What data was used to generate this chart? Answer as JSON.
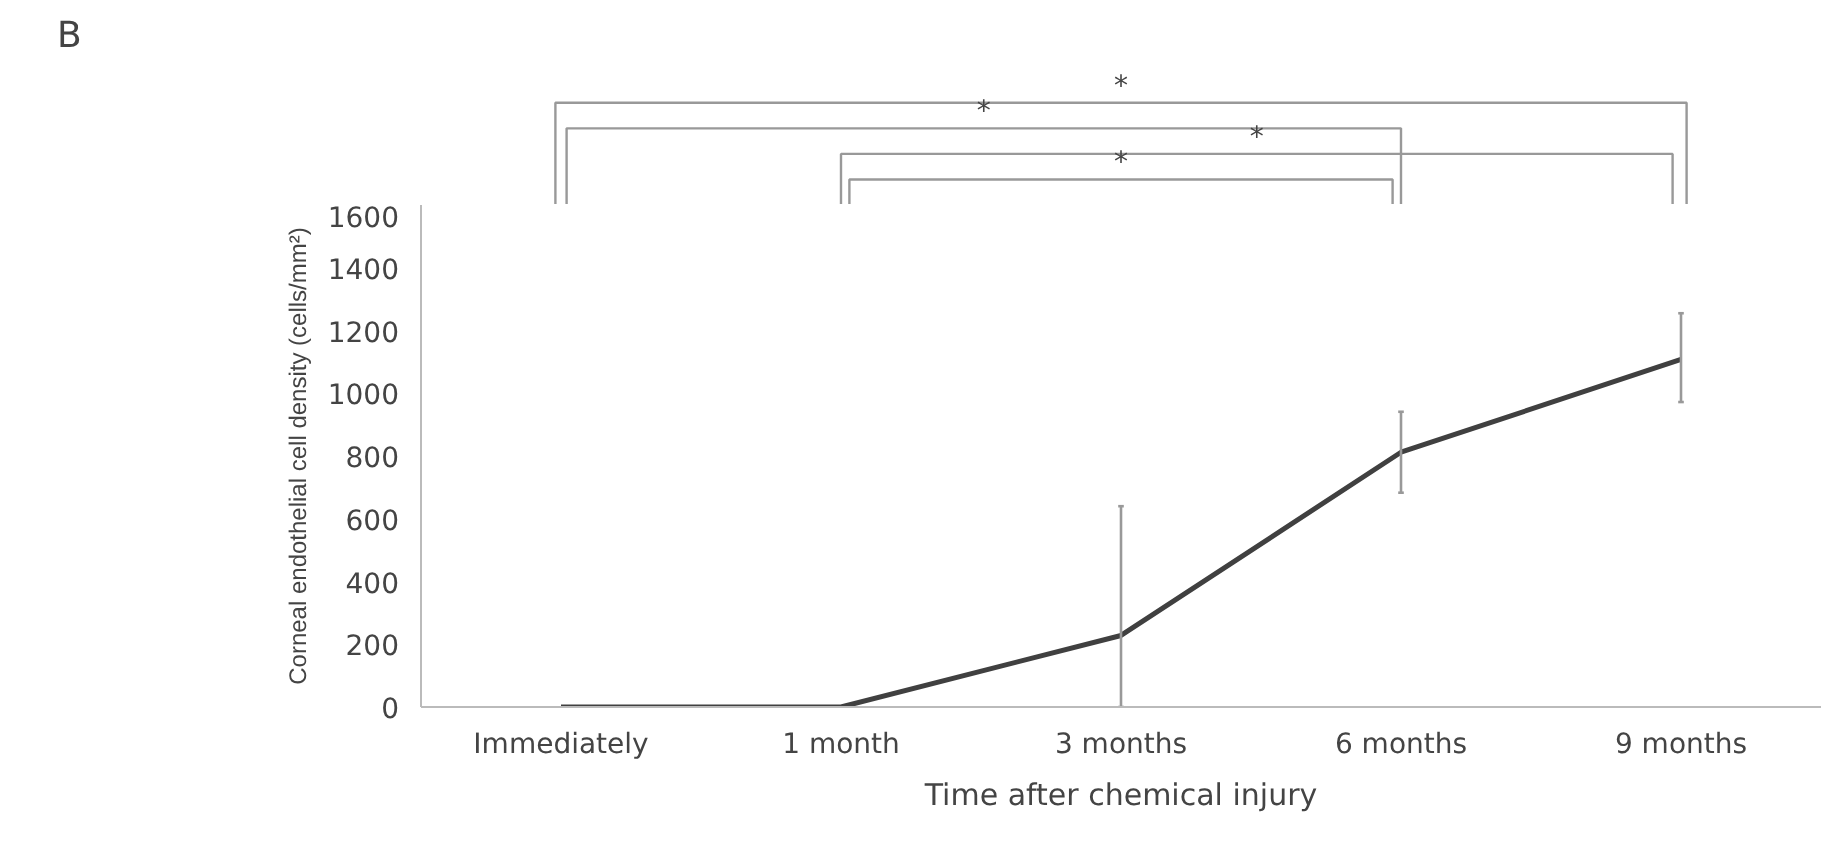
{
  "chart_data": {
    "type": "line",
    "xlabel": "Time after chemical injury",
    "ylabel": "Corneal endothelial cell density (cells/mm²)",
    "categories": [
      "Immediately",
      "1 month",
      "3 months",
      "6 months",
      "9 months"
    ],
    "series": [
      {
        "color": "#404040",
        "values": [
          0,
          0,
          228,
          812,
          1108
        ],
        "errors": [
          null,
          null,
          [
            0,
            640
          ],
          [
            683,
            941
          ],
          [
            972,
            1255
          ]
        ]
      }
    ],
    "ylim": [
      0,
      1600
    ],
    "yticks": [
      0,
      200,
      400,
      600,
      800,
      1000,
      1200,
      1400,
      1600
    ],
    "grid": false,
    "marker": "none",
    "line_style": "solid",
    "annotations": [
      "B",
      "*",
      "*",
      "*",
      "*"
    ]
  }
}
